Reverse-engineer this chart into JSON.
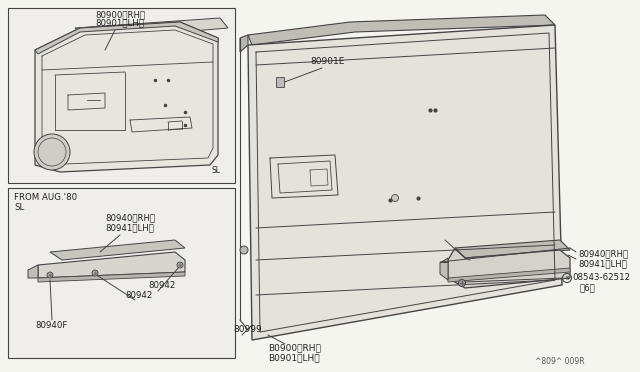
{
  "bg_color": "#f5f5f0",
  "line_color": "#444444",
  "text_color": "#222222",
  "fig_ref": "^809^ 009R",
  "labels": {
    "top_box_part1_line1": "80900〈RH〉",
    "top_box_part1_line2": "80901〈LH〉",
    "top_box_sl": "SL",
    "bottom_box_header1": "FROM AUG.'80",
    "bottom_box_header2": "SL",
    "bottom_box_part1_line1": "80940〈RH〉",
    "bottom_box_part1_line2": "80941〈LH〉",
    "bottom_box_part2a": "80942",
    "bottom_box_part2b": "80942",
    "bottom_box_part3": "80940F",
    "main_part1": "80901E",
    "main_part2_line1": "B0900〈RH〉",
    "main_part2_line2": "B0901〈LH〉",
    "main_part3": "80999",
    "right_part1_line1": "80940〈RH〉",
    "right_part1_line2": "80941〈LH〉",
    "right_part2": "08543-62512",
    "right_part2b": "〈6〉"
  }
}
